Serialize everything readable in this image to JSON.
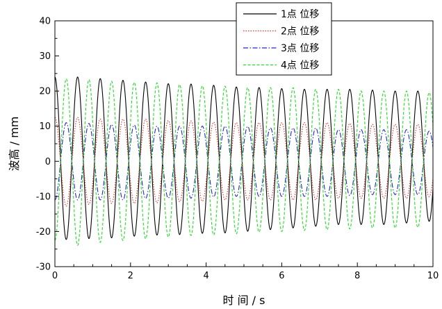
{
  "chart_data": {
    "type": "line",
    "title": "",
    "xlabel": "时 间 / s",
    "ylabel": "波高 / mm",
    "xlim": [
      0,
      10
    ],
    "ylim": [
      -30,
      40
    ],
    "x_ticks": [
      "0",
      "2",
      "4",
      "6",
      "8",
      "10"
    ],
    "y_ticks": [
      "-30",
      "-20",
      "-10",
      "0",
      "10",
      "20",
      "30",
      "40"
    ],
    "grid": false,
    "legend_position": "top-right",
    "series": [
      {
        "name": "1点 位移",
        "color": "#000000",
        "dash": "solid",
        "period_s": 0.6,
        "phase_s": 0.6,
        "peaks": [
          24,
          24,
          23.5,
          23,
          22.5,
          22,
          22,
          21.5,
          21,
          21,
          20.5,
          20.5,
          20.5,
          20.5,
          20,
          20,
          20
        ],
        "troughs": [
          -22.5,
          -22,
          -22,
          -21.5,
          -21,
          -21,
          -20.5,
          -20.5,
          -20,
          -19.5,
          -19,
          -18.5,
          -18,
          -18,
          -18,
          -17.5,
          -17
        ]
      },
      {
        "name": "2点 位移",
        "color": "#e32828",
        "dash": "dotted",
        "period_s": 0.6,
        "phase_s": 0.6,
        "peaks": [
          12.5,
          12.5,
          12,
          12,
          12,
          11.5,
          11.5,
          11,
          11,
          11,
          11,
          11,
          11,
          10.5,
          10.5,
          10.5,
          10.5
        ],
        "troughs": [
          -13,
          -12.5,
          -12,
          -12,
          -12,
          -11.5,
          -11.5,
          -11,
          -11,
          -11,
          -11,
          -11,
          -10.5,
          -10.5,
          -10.5,
          -10.5,
          -10
        ]
      },
      {
        "name": "3点 位移",
        "color": "#2323d6",
        "dash": "dashdot",
        "period_s": 0.6,
        "phase_s": 0.3,
        "peaks": [
          11,
          11,
          10.5,
          10.5,
          10,
          10,
          10,
          10,
          10,
          9.5,
          9.5,
          9.5,
          9,
          9,
          9,
          9,
          8.5
        ],
        "troughs": [
          -11,
          -11,
          -11,
          -11,
          -10.5,
          -10.5,
          -10.5,
          -10,
          -10,
          -10,
          -10,
          -10,
          -10,
          -9.5,
          -9.5,
          -9.5,
          -9.5
        ]
      },
      {
        "name": "4点 位移",
        "color": "#22dd22",
        "dash": "dashed",
        "period_s": 0.6,
        "phase_s": 0.3,
        "peaks": [
          23.5,
          23.5,
          23,
          22.5,
          22.5,
          22,
          21.5,
          21.5,
          21,
          21,
          21,
          20.5,
          20.5,
          20,
          20,
          20,
          19.5
        ],
        "troughs": [
          -22.5,
          -24,
          -23,
          -22.5,
          -22,
          -21.5,
          -21,
          -21,
          -20.5,
          -20,
          -20,
          -19.5,
          -19.5,
          -19,
          -19,
          -19,
          -18.5
        ]
      }
    ]
  }
}
